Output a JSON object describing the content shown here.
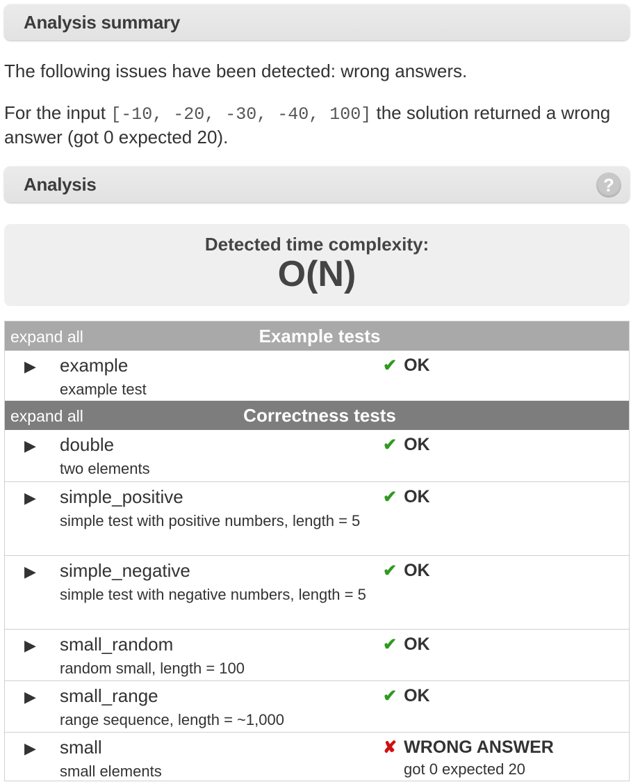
{
  "summary": {
    "title": "Analysis summary",
    "issues_text": "The following issues have been detected: wrong answers.",
    "detail_prefix": "For the input ",
    "detail_input": "[-10, -20, -30, -40, 100]",
    "detail_suffix": " the solution returned a wrong answer (got 0 expected 20)."
  },
  "analysis": {
    "title": "Analysis",
    "help_glyph": "?",
    "complexity_label": "Detected time complexity:",
    "complexity_value": "O(N)"
  },
  "colors": {
    "ok": "#2f9a1f",
    "fail": "#d01010",
    "group_light": "#a9a9a9",
    "group_dark": "#7d7d7d"
  },
  "groups": [
    {
      "expand_label": "expand all",
      "title": "Example tests",
      "tests": [
        {
          "arrow": "▶",
          "name": "example",
          "description": "example test",
          "mark": "✔",
          "result": "OK",
          "detail": ""
        }
      ]
    },
    {
      "expand_label": "expand all",
      "title": "Correctness tests",
      "tests": [
        {
          "arrow": "▶",
          "name": "double",
          "description": "two elements",
          "mark": "✔",
          "result": "OK",
          "detail": ""
        },
        {
          "arrow": "▶",
          "name": "simple_positive",
          "description": "simple test with positive numbers, length = 5",
          "mark": "✔",
          "result": "OK",
          "detail": ""
        },
        {
          "arrow": "▶",
          "name": "simple_negative",
          "description": "simple test with negative numbers, length = 5",
          "mark": "✔",
          "result": "OK",
          "detail": ""
        },
        {
          "arrow": "▶",
          "name": "small_random",
          "description": "random small, length = 100",
          "mark": "✔",
          "result": "OK",
          "detail": ""
        },
        {
          "arrow": "▶",
          "name": "small_range",
          "description": "range sequence, length = ~1,000",
          "mark": "✔",
          "result": "OK",
          "detail": ""
        },
        {
          "arrow": "▶",
          "name": "small",
          "description": "small elements",
          "mark": "✘",
          "result": "WRONG ANSWER",
          "detail": "got 0 expected 20"
        }
      ]
    }
  ]
}
